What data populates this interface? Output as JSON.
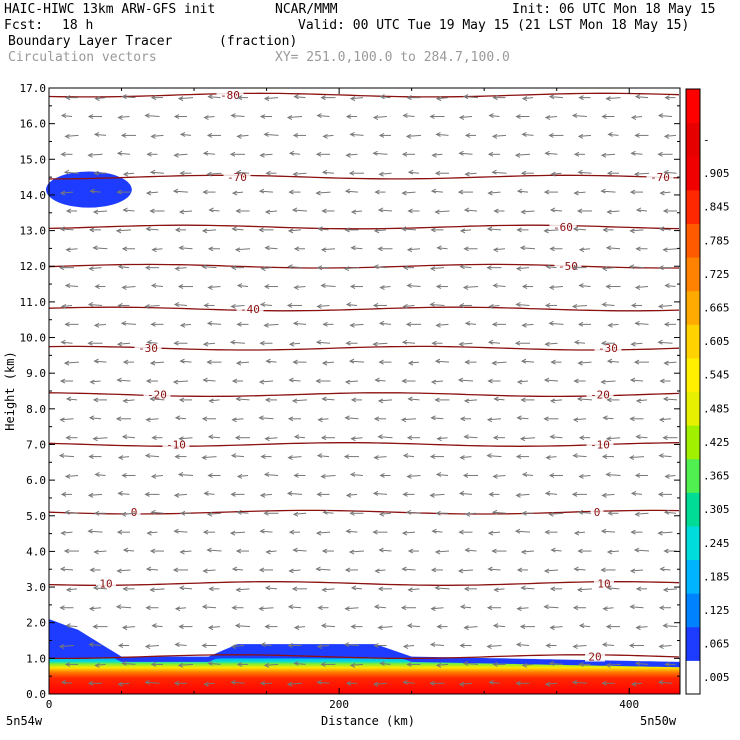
{
  "header": {
    "model": "HAIC-HIWC 13km ARW-GFS init",
    "org": "NCAR/MMM",
    "init": "Init: 06 UTC Mon 18 May 15",
    "fcst_label": "Fcst:",
    "fcst_value": "18 h",
    "valid": "Valid: 00 UTC Tue 19 May 15 (21 LST Mon 18 May 15)",
    "field_name": "Boundary Layer Tracer",
    "field_units": "(fraction)",
    "vector_label": "Circulation vectors",
    "xy_label": "XY= 251.0,100.0 to 284.7,100.0"
  },
  "chart_data": {
    "type": "heatmap",
    "xlabel": "Distance (km)",
    "ylabel": "Height (km)",
    "xlim": [
      0,
      435
    ],
    "ylim": [
      0,
      17
    ],
    "x_ticks": [
      "0",
      "200",
      "400"
    ],
    "x_endpoint_labels": [
      "5n54w",
      "5n50w"
    ],
    "y_ticks": [
      "0.0",
      "1.0",
      "2.0",
      "3.0",
      "4.0",
      "5.0",
      "6.0",
      "7.0",
      "8.0",
      "9.0",
      "10.0",
      "11.0",
      "12.0",
      "13.0",
      "14.0",
      "15.0",
      "16.0",
      "17.0"
    ],
    "colorbar": {
      "labels": [
        ".005",
        ".065",
        ".125",
        ".185",
        ".245",
        ".305",
        ".365",
        ".425",
        ".485",
        ".545",
        ".605",
        ".665",
        ".725",
        ".785",
        ".845",
        ".905",
        "-"
      ],
      "colors": [
        "#ffffff",
        "#1e3cff",
        "#0082ff",
        "#00b4ff",
        "#00dcdc",
        "#00dc96",
        "#50f050",
        "#a0f000",
        "#e6f000",
        "#fff000",
        "#ffd200",
        "#ffaa00",
        "#ff8200",
        "#ff5a00",
        "#ff2800",
        "#f00000",
        "#e60000",
        "#ff0000"
      ]
    },
    "contour_color": "#8b1010",
    "temperature_contours_c": [
      {
        "label": "-80",
        "height_km": 16.8
      },
      {
        "label": "-70",
        "height_km": 14.5
      },
      {
        "label": "-60",
        "height_km": 13.1
      },
      {
        "label": "-50",
        "height_km": 12.0
      },
      {
        "label": "-40",
        "height_km": 10.8
      },
      {
        "label": "-30",
        "height_km": 9.7
      },
      {
        "label": "-20",
        "height_km": 8.4
      },
      {
        "label": "-10",
        "height_km": 7.0
      },
      {
        "label": "0",
        "height_km": 5.1
      },
      {
        "label": "10",
        "height_km": 3.1
      },
      {
        "label": "20",
        "height_km": 1.05
      }
    ],
    "tracer_layer": {
      "top_km_left": 2.1,
      "top_km_mid": 1.4,
      "top_km_right": 0.9
    },
    "tracer_patch": {
      "x_km": [
        0,
        55
      ],
      "z_km": [
        13.7,
        14.6
      ]
    }
  }
}
